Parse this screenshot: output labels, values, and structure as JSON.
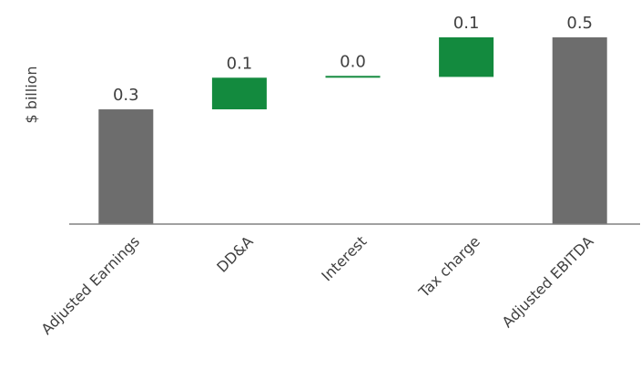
{
  "chart_data": {
    "type": "bar",
    "variant": "waterfall",
    "ylabel": "$ billion",
    "ylim": [
      0,
      0.55
    ],
    "grid": false,
    "legend": "none",
    "categories": [
      "Adjusted Earnings",
      "DD&A",
      "Interest",
      "Tax charge",
      "Adjusted EBITDA"
    ],
    "bars": [
      {
        "category": "Adjusted Earnings",
        "kind": "total",
        "base": 0,
        "value": 0.29,
        "label": "0.3"
      },
      {
        "category": "DD&A",
        "kind": "increase",
        "base": 0.29,
        "value": 0.08,
        "label": "0.1"
      },
      {
        "category": "Interest",
        "kind": "increase",
        "base": 0.37,
        "value": 0.002,
        "label": "0.0"
      },
      {
        "category": "Tax charge",
        "kind": "increase",
        "base": 0.372,
        "value": 0.1,
        "label": "0.1"
      },
      {
        "category": "Adjusted EBITDA",
        "kind": "total",
        "base": 0,
        "value": 0.472,
        "label": "0.5"
      }
    ],
    "colors": {
      "total": "#6d6d6d",
      "increase": "#138a3e",
      "axis": "#808080",
      "text": "#404040"
    }
  }
}
